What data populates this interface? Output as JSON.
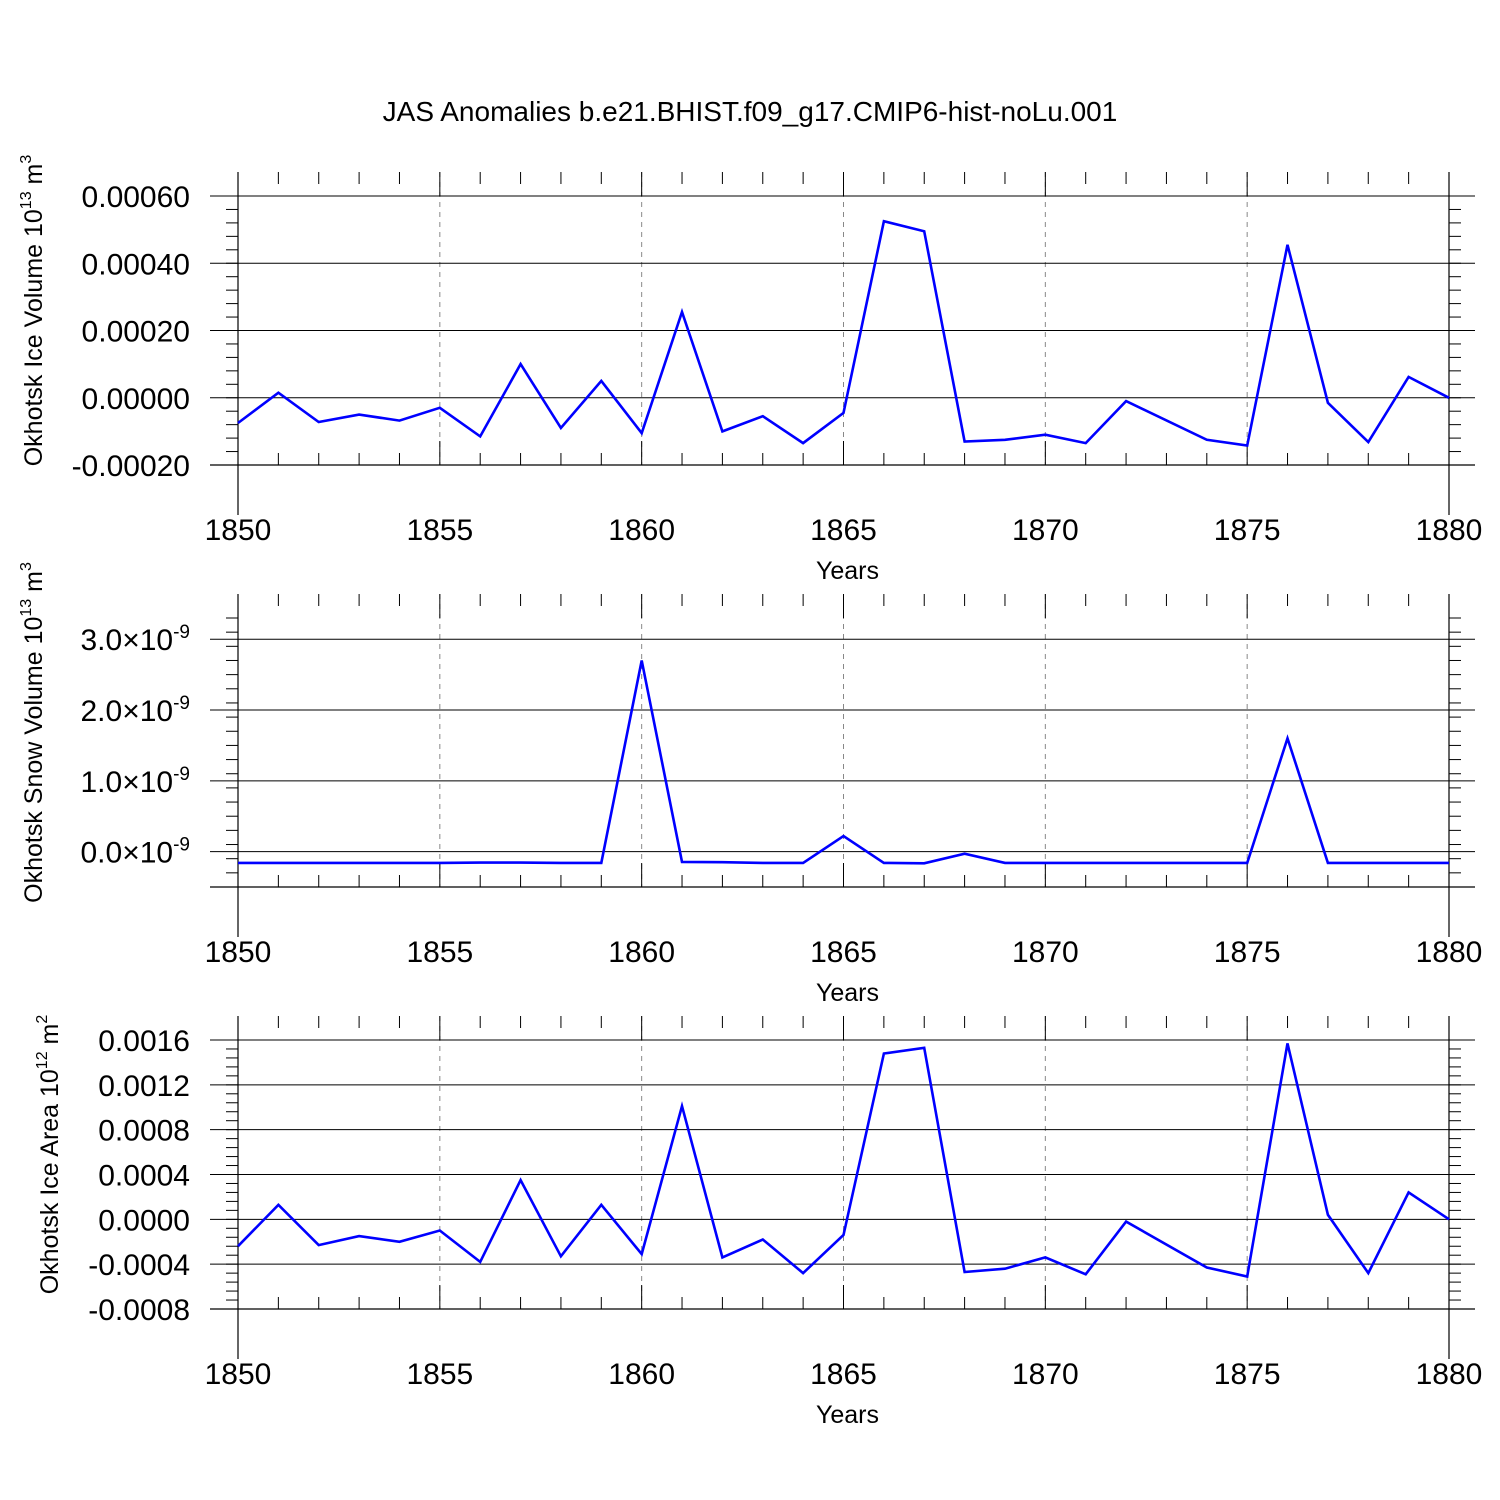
{
  "title": "JAS Anomalies b.e21.BHIST.f09_g17.CMIP6-hist-noLu.001",
  "colors": {
    "line": "#0000ff",
    "axis": "#000000",
    "grid": "#888888"
  },
  "chart_data": [
    {
      "type": "line",
      "title": "",
      "xlabel": "Years",
      "ylabel_main": "Okhotsk Ice Volume 10",
      "ylabel_exp": "13",
      "ylabel_unit": " m",
      "ylabel_unit_exp": "3",
      "xlim": [
        1850,
        1880
      ],
      "ylim": [
        -0.0002,
        0.0006
      ],
      "x_ticks": [
        "1850",
        "1855",
        "1860",
        "1865",
        "1870",
        "1875",
        "1880"
      ],
      "y_tick_values": [
        -0.0002,
        0.0,
        0.0002,
        0.0004,
        0.0006
      ],
      "y_tick_labels": [
        "-0.00020",
        "0.00000",
        "0.00020",
        "0.00040",
        "0.00060"
      ],
      "grid": "vertical dashed at major x ticks",
      "series": [
        {
          "x": [
            1850,
            1851,
            1852,
            1853,
            1854,
            1855,
            1856,
            1857,
            1858,
            1859,
            1860,
            1861,
            1862,
            1863,
            1864,
            1865,
            1866,
            1867,
            1868,
            1869,
            1870,
            1871,
            1872,
            1874,
            1875,
            1876,
            1877,
            1878,
            1879,
            1880
          ],
          "values": [
            -7.5e-05,
            1.5e-05,
            -7.2e-05,
            -5e-05,
            -6.8e-05,
            -3e-05,
            -0.000115,
            0.0001,
            -9e-05,
            5e-05,
            -0.000105,
            0.000255,
            -0.0001,
            -5.5e-05,
            -0.000135,
            -4.5e-05,
            0.000525,
            0.000495,
            -0.00013,
            -0.000125,
            -0.00011,
            -0.000135,
            -1e-05,
            -0.000125,
            -0.000142,
            0.000455,
            -1.5e-05,
            -0.000132,
            6.2e-05,
            0.0
          ]
        }
      ]
    },
    {
      "type": "line",
      "title": "",
      "xlabel": "Years",
      "ylabel_main": "Okhotsk Snow Volume 10",
      "ylabel_exp": "13",
      "ylabel_unit": " m",
      "ylabel_unit_exp": "3",
      "xlim": [
        1850,
        1880
      ],
      "ylim": [
        -5e-10,
        3.3e-09
      ],
      "x_ticks": [
        "1850",
        "1855",
        "1860",
        "1865",
        "1870",
        "1875",
        "1880"
      ],
      "y_tick_values": [
        0.0,
        1e-09,
        2e-09,
        3e-09
      ],
      "y_tick_mantissas": [
        "0.0",
        "1.0",
        "2.0",
        "3.0"
      ],
      "y_tick_times": "×10",
      "y_tick_exponent": "-9",
      "grid": "vertical dashed at major x ticks",
      "series": [
        {
          "x": [
            1850,
            1851,
            1852,
            1853,
            1854,
            1855,
            1856,
            1857,
            1858,
            1859,
            1860,
            1861,
            1862,
            1863,
            1864,
            1865,
            1866,
            1867,
            1868,
            1869,
            1870,
            1871,
            1872,
            1873,
            1874,
            1875,
            1876,
            1877,
            1878,
            1879,
            1880
          ],
          "values": [
            -1.6e-10,
            -1.6e-10,
            -1.6e-10,
            -1.6e-10,
            -1.6e-10,
            -1.6e-10,
            -1.55e-10,
            -1.55e-10,
            -1.6e-10,
            -1.6e-10,
            2.7e-09,
            -1.45e-10,
            -1.5e-10,
            -1.6e-10,
            -1.6e-10,
            2.2e-10,
            -1.6e-10,
            -1.65e-10,
            -3e-11,
            -1.6e-10,
            -1.6e-10,
            -1.6e-10,
            -1.6e-10,
            -1.6e-10,
            -1.6e-10,
            -1.6e-10,
            1.6e-09,
            -1.6e-10,
            -1.6e-10,
            -1.6e-10,
            -1.6e-10
          ]
        }
      ]
    },
    {
      "type": "line",
      "title": "",
      "xlabel": "Years",
      "ylabel_main": "Okhotsk Ice Area 10",
      "ylabel_exp": "12",
      "ylabel_unit": " m",
      "ylabel_unit_exp": "2",
      "xlim": [
        1850,
        1880
      ],
      "ylim": [
        -0.0008,
        0.0016
      ],
      "x_ticks": [
        "1850",
        "1855",
        "1860",
        "1865",
        "1870",
        "1875",
        "1880"
      ],
      "y_tick_values": [
        -0.0008,
        -0.0004,
        0.0,
        0.0004,
        0.0008,
        0.0012,
        0.0016
      ],
      "y_tick_labels": [
        "-0.0008",
        "-0.0004",
        "0.0000",
        "0.0004",
        "0.0008",
        "0.0012",
        "0.0016"
      ],
      "grid": "vertical dashed at major x ticks",
      "series": [
        {
          "x": [
            1850,
            1851,
            1852,
            1853,
            1854,
            1855,
            1856,
            1857,
            1858,
            1859,
            1860,
            1861,
            1862,
            1863,
            1864,
            1865,
            1866,
            1867,
            1868,
            1869,
            1870,
            1871,
            1872,
            1874,
            1875,
            1876,
            1877,
            1878,
            1879,
            1880
          ],
          "values": [
            -0.00024,
            0.00013,
            -0.00023,
            -0.00015,
            -0.0002,
            -0.0001,
            -0.00038,
            0.00035,
            -0.00033,
            0.00013,
            -0.00031,
            0.00101,
            -0.00034,
            -0.00018,
            -0.00048,
            -0.00014,
            0.00148,
            0.00153,
            -0.00047,
            -0.00044,
            -0.00034,
            -0.00049,
            -2e-05,
            -0.00043,
            -0.00051,
            0.00157,
            4e-05,
            -0.00048,
            0.00024,
            0.0
          ]
        }
      ]
    }
  ]
}
